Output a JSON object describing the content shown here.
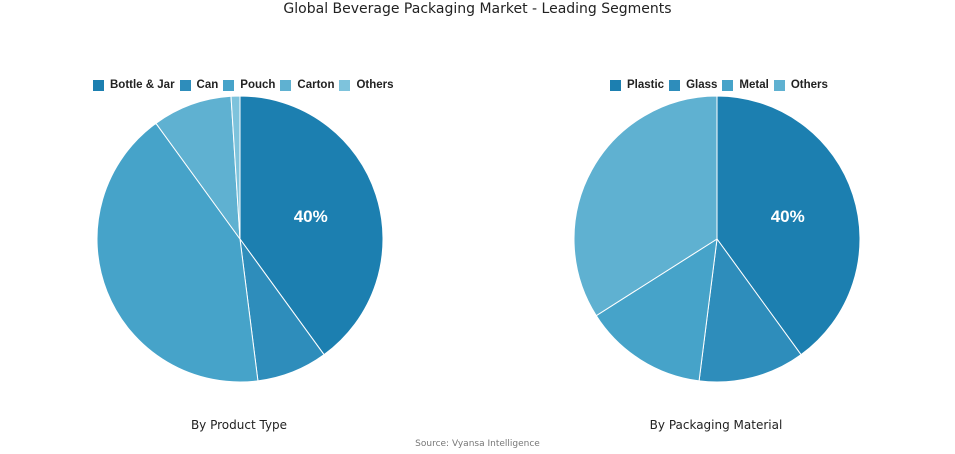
{
  "title": "Global Beverage Packaging Market - Leading Segments",
  "source": "Source: Vyansa Intelligence",
  "charts": [
    {
      "subtitle": "By Product Type",
      "labels": [
        "Bottle & Jar",
        "Can",
        "Pouch",
        "Carton",
        "Others"
      ],
      "values": [
        40,
        8,
        42,
        9,
        1
      ],
      "colors": [
        "#1c7fb0",
        "#2e8dbb",
        "#46a3c9",
        "#5fb1d1",
        "#7ec3dc"
      ],
      "shown_label": "40%"
    },
    {
      "subtitle": "By Packaging Material",
      "labels": [
        "Plastic",
        "Glass",
        "Metal",
        "Others"
      ],
      "values": [
        40,
        12,
        14,
        34
      ],
      "colors": [
        "#1c7fb0",
        "#2e8dbb",
        "#46a3c9",
        "#5fb1d1"
      ],
      "shown_label": "40%"
    }
  ],
  "chart_data": [
    {
      "type": "pie",
      "title": "Global Beverage Packaging Market - Leading Segments",
      "subtitle": "By Product Type",
      "categories": [
        "Bottle & Jar",
        "Can",
        "Pouch",
        "Carton",
        "Others"
      ],
      "values": [
        40,
        8,
        42,
        9,
        1
      ],
      "annotations": [
        "40%"
      ],
      "legend_position": "top"
    },
    {
      "type": "pie",
      "title": "Global Beverage Packaging Market - Leading Segments",
      "subtitle": "By Packaging Material",
      "categories": [
        "Plastic",
        "Glass",
        "Metal",
        "Others"
      ],
      "values": [
        40,
        12,
        14,
        34
      ],
      "annotations": [
        "40%"
      ],
      "legend_position": "top"
    }
  ]
}
